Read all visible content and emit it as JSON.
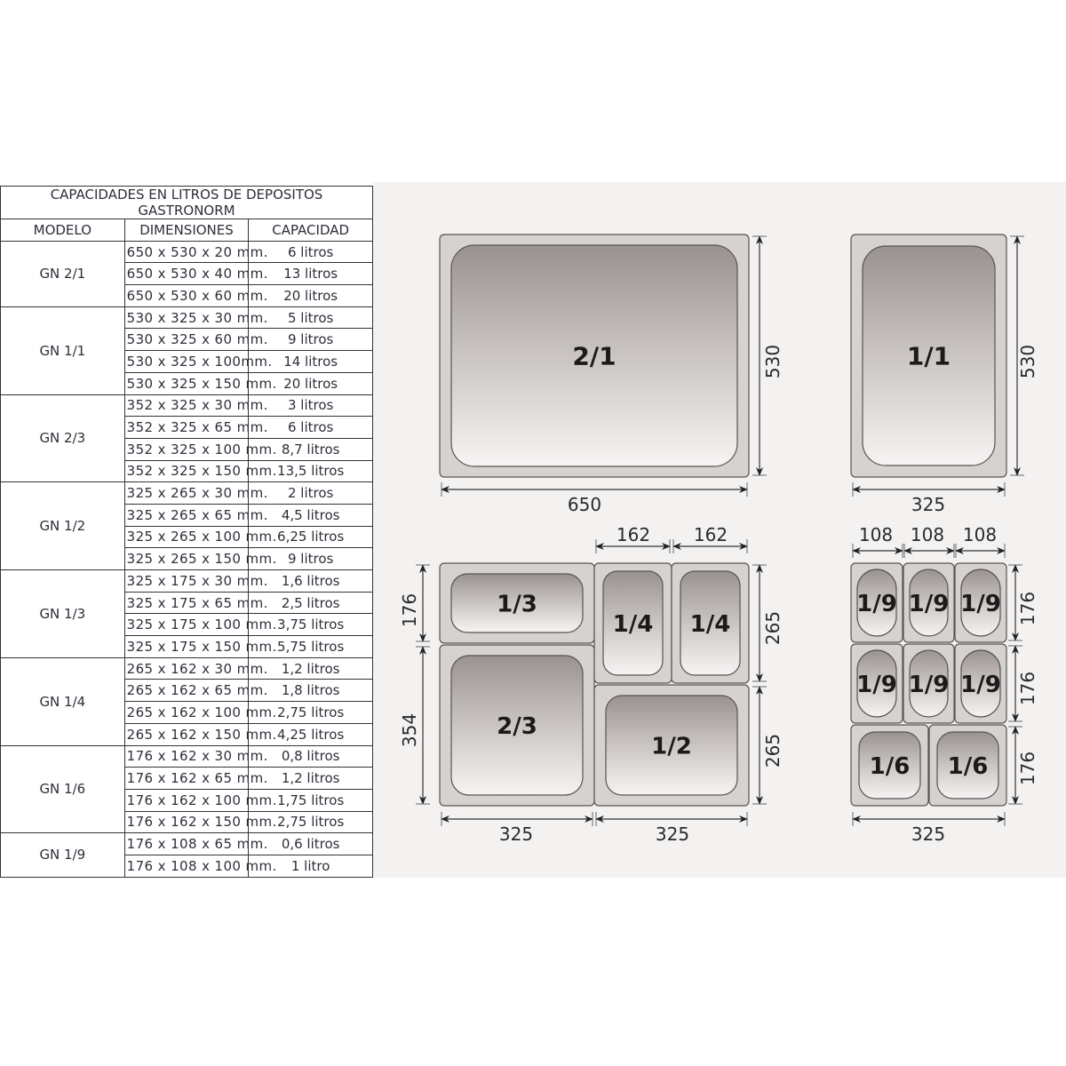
{
  "table": {
    "title_line1": "CAPACIDADES EN LITROS DE DEPOSITOS",
    "title_line2": "GASTRONORM",
    "headers": [
      "MODELO",
      "DIMENSIONES",
      "CAPACIDAD"
    ],
    "groups": [
      {
        "model": "GN 2/1",
        "rows": [
          [
            "650 x 530 x 20 mm.",
            "6 litros"
          ],
          [
            "650 x 530 x 40 mm.",
            "13 litros"
          ],
          [
            "650 x 530 x 60 mm.",
            "20 litros"
          ]
        ]
      },
      {
        "model": "GN 1/1",
        "rows": [
          [
            "530 x 325 x 30 mm.",
            "5 litros"
          ],
          [
            "530 x 325 x 60 mm.",
            "9 litros"
          ],
          [
            "530 x 325 x 100mm.",
            "14 litros"
          ],
          [
            "530 x 325 x 150 mm.",
            "20 litros"
          ]
        ]
      },
      {
        "model": "GN 2/3",
        "rows": [
          [
            "352 x 325 x 30 mm.",
            "3 litros"
          ],
          [
            "352 x 325 x 65 mm.",
            "6 litros"
          ],
          [
            "352 x 325 x 100 mm.",
            "8,7 litros"
          ],
          [
            "352 x 325 x 150 mm.",
            "13,5 litros"
          ]
        ]
      },
      {
        "model": "GN 1/2",
        "rows": [
          [
            "325 x 265 x 30 mm.",
            "2 litros"
          ],
          [
            "325 x 265 x 65 mm.",
            "4,5 litros"
          ],
          [
            "325 x 265 x 100 mm.",
            "6,25 litros"
          ],
          [
            "325 x 265 x 150 mm.",
            "9 litros"
          ]
        ]
      },
      {
        "model": "GN 1/3",
        "rows": [
          [
            "325 x 175 x 30 mm.",
            "1,6 litros"
          ],
          [
            "325 x 175 x 65 mm.",
            "2,5 litros"
          ],
          [
            "325 x 175 x 100 mm.",
            "3,75 litros"
          ],
          [
            "325 x 175 x 150 mm.",
            "5,75 litros"
          ]
        ]
      },
      {
        "model": "GN 1/4",
        "rows": [
          [
            "265 x 162 x 30 mm.",
            "1,2 litros"
          ],
          [
            "265 x 162 x 65 mm.",
            "1,8 litros"
          ],
          [
            "265 x 162 x 100 mm.",
            "2,75 litros"
          ],
          [
            "265 x 162 x 150 mm.",
            "4,25 litros"
          ]
        ]
      },
      {
        "model": "GN 1/6",
        "rows": [
          [
            "176 x 162 x 30 mm.",
            "0,8 litros"
          ],
          [
            "176 x 162 x 65 mm.",
            "1,2 litros"
          ],
          [
            "176 x 162 x 100 mm.",
            "1,75 litros"
          ],
          [
            "176 x 162 x 150 mm.",
            "2,75 litros"
          ]
        ]
      },
      {
        "model": "GN 1/9",
        "rows": [
          [
            "176 x 108 x 65 mm.",
            "0,6 litros"
          ],
          [
            "176 x 108 x 100 mm.",
            "1 litro"
          ]
        ]
      }
    ]
  },
  "diagram": {
    "pans": [
      "2/1",
      "1/1",
      "1/3",
      "2/3",
      "1/4",
      "1/4",
      "1/2",
      "1/9",
      "1/9",
      "1/9",
      "1/9",
      "1/9",
      "1/9",
      "1/6",
      "1/6"
    ],
    "dimensions": [
      "650",
      "530",
      "325",
      "530",
      "162",
      "162",
      "176",
      "354",
      "265",
      "265",
      "325",
      "325",
      "108",
      "108",
      "108",
      "176",
      "176",
      "176",
      "325"
    ],
    "colors": {
      "background": "#f4f2f1",
      "pan_rim": "#d6d2d0",
      "pan_well_top": "#9a9290",
      "pan_well_bottom": "#f6f4f3",
      "outline": "#555555"
    }
  }
}
